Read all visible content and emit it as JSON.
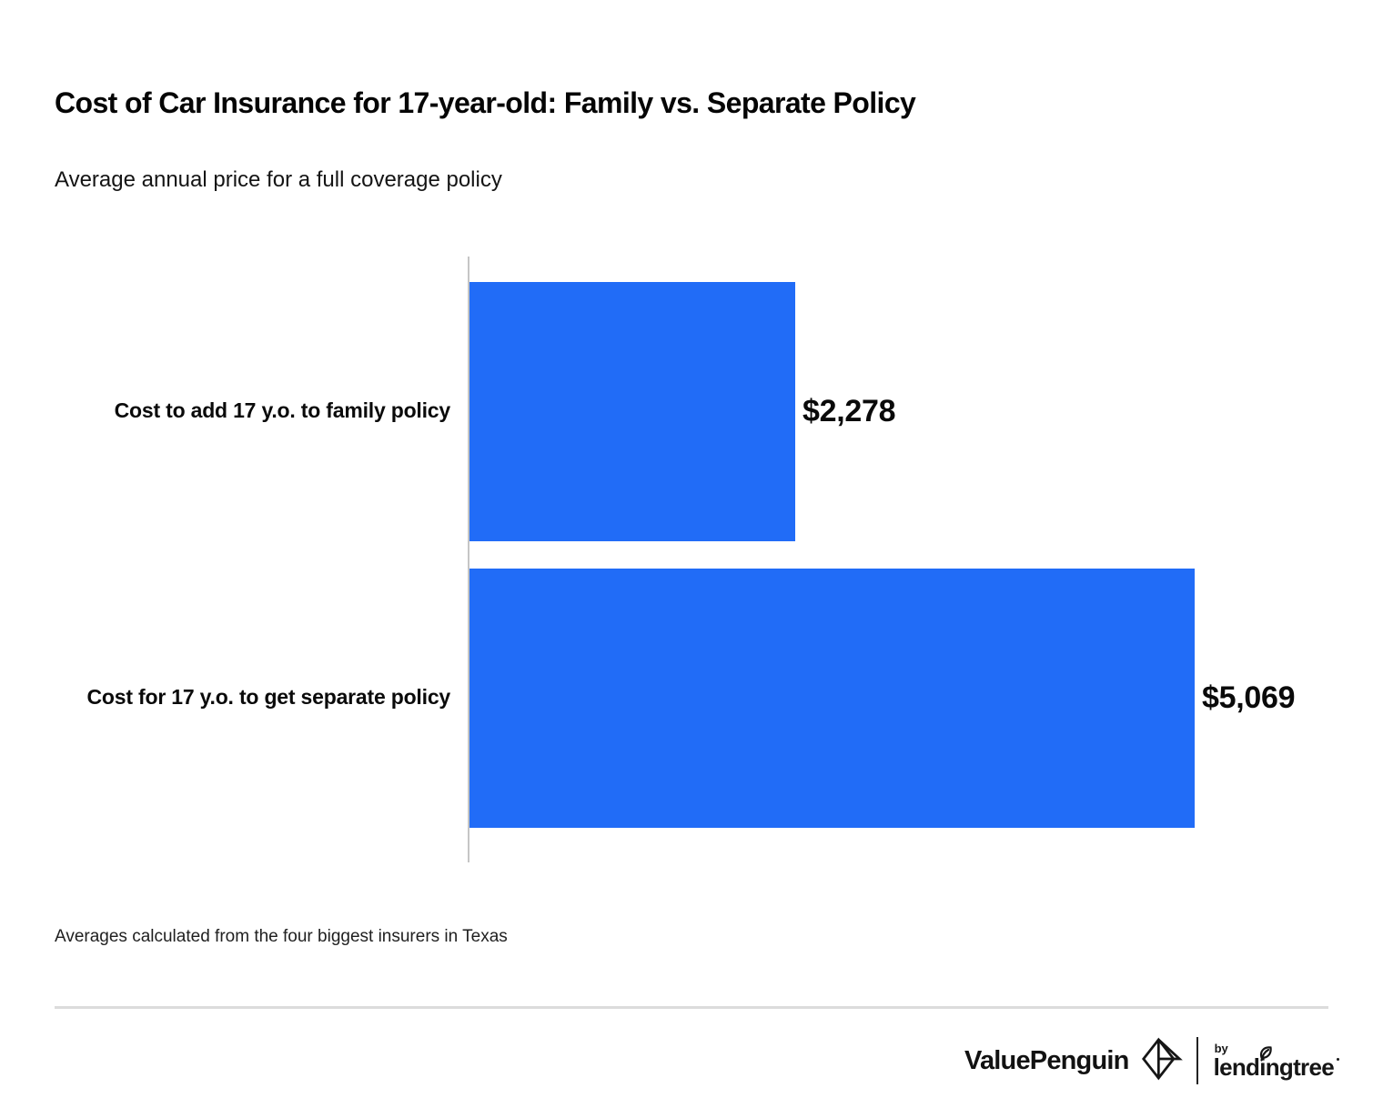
{
  "header": {
    "title": "Cost of Car Insurance for 17-year-old: Family vs. Separate Policy",
    "subtitle": "Average annual price for a full coverage policy"
  },
  "chart_data": {
    "type": "bar",
    "orientation": "horizontal",
    "title": "Cost of Car Insurance for 17-year-old: Family vs. Separate Policy",
    "subtitle": "Average annual price for a full coverage policy",
    "categories": [
      "Cost to add 17 y.o. to family policy",
      "Cost for 17 y.o. to get separate policy"
    ],
    "values": [
      2278,
      5069
    ],
    "value_labels": [
      "$2,278",
      "$5,069"
    ],
    "xlabel": "",
    "ylabel": "",
    "xlim": [
      0,
      5069
    ],
    "grid": false,
    "legend": false,
    "bar_color": "#216cf7",
    "axis_line_color": "#c5c5c5",
    "annotation": "Averages calculated from the four biggest insurers in Texas"
  },
  "footer": {
    "note": "Averages calculated from the four biggest insurers in Texas",
    "brand_primary": "ValuePenguin",
    "by_label": "by",
    "brand_secondary": "lendingtree"
  },
  "icons": {
    "valuepenguin_logo": "origami-penguin-diamond-icon",
    "lendingtree_leaf": "leaf-icon"
  }
}
